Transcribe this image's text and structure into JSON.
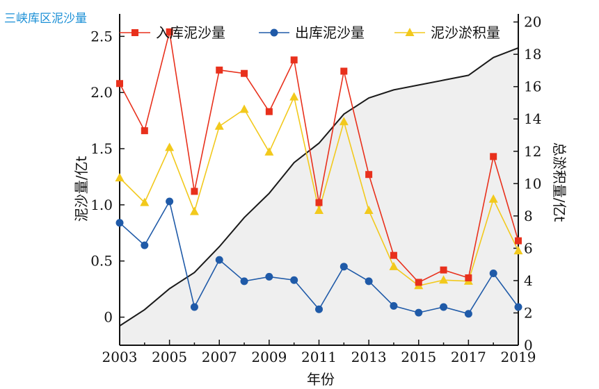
{
  "page": {
    "title": "三峡库区泥沙量"
  },
  "chart_data": {
    "type": "line",
    "x": [
      2003,
      2004,
      2005,
      2006,
      2007,
      2008,
      2009,
      2010,
      2011,
      2012,
      2013,
      2014,
      2015,
      2016,
      2017,
      2018,
      2019
    ],
    "xlabel": "年份",
    "xticks": [
      2003,
      2005,
      2007,
      2009,
      2011,
      2013,
      2015,
      2017,
      2019
    ],
    "ylabel": "泥沙量/亿t",
    "ylim": [
      -0.25,
      2.7
    ],
    "yticks": [
      0,
      0.5,
      1.0,
      1.5,
      2.0,
      2.5
    ],
    "ytick_labels": [
      "0",
      "0.5",
      "1.0",
      "1.5",
      "2.0",
      "2.5"
    ],
    "y2label": "总淤积量/亿t",
    "y2lim": [
      0,
      20.5
    ],
    "y2ticks": [
      0,
      2,
      4,
      6,
      8,
      10,
      12,
      14,
      16,
      18,
      20
    ],
    "series": [
      {
        "name": "入库泥沙量",
        "axis": "left",
        "color": "#e8301c",
        "marker": "square",
        "values": [
          2.08,
          1.66,
          2.54,
          1.12,
          2.2,
          2.17,
          1.83,
          2.29,
          1.02,
          2.19,
          1.27,
          0.55,
          0.31,
          0.42,
          0.35,
          1.43,
          0.68
        ]
      },
      {
        "name": "出库泥沙量",
        "axis": "left",
        "color": "#1f5aa8",
        "marker": "circle",
        "values": [
          0.84,
          0.64,
          1.03,
          0.09,
          0.51,
          0.32,
          0.36,
          0.33,
          0.07,
          0.45,
          0.32,
          0.1,
          0.04,
          0.09,
          0.03,
          0.39,
          0.09
        ]
      },
      {
        "name": "泥沙淤积量",
        "axis": "left",
        "color": "#f2c91c",
        "marker": "triangle",
        "values": [
          1.24,
          1.02,
          1.51,
          0.94,
          1.7,
          1.85,
          1.47,
          1.96,
          0.95,
          1.74,
          0.95,
          0.45,
          0.28,
          0.33,
          0.32,
          1.05,
          0.59
        ]
      },
      {
        "axis": "right",
        "color": "#1a1a1a",
        "fill": "#efefef",
        "marker": "none",
        "area": true,
        "values": [
          1.2,
          2.2,
          3.5,
          4.5,
          6.1,
          7.9,
          9.4,
          11.3,
          12.5,
          14.3,
          15.3,
          15.8,
          16.1,
          16.4,
          16.7,
          17.8,
          18.4
        ]
      }
    ],
    "legend_position": "top",
    "grid": false,
    "colors": {
      "axis": "#111111",
      "title": "#1a8fd6"
    }
  }
}
